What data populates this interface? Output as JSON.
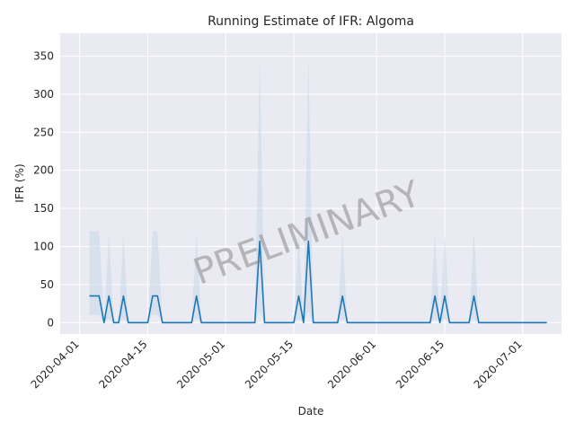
{
  "chart_data": {
    "type": "line",
    "title": "Running Estimate of IFR: Algoma",
    "xlabel": "Date",
    "ylabel": "IFR (%)",
    "watermark": "PRELIMINARY",
    "grid": true,
    "x_range": [
      "2020-03-28",
      "2020-07-09"
    ],
    "ylim": [
      -15,
      380
    ],
    "x_ticks": [
      "2020-04-01",
      "2020-04-15",
      "2020-05-01",
      "2020-05-15",
      "2020-06-01",
      "2020-06-15",
      "2020-07-01"
    ],
    "y_ticks": [
      0,
      50,
      100,
      150,
      200,
      250,
      300,
      350
    ],
    "line_color": "#1f77b4",
    "band_color": "#c6d7ea",
    "series": [
      {
        "values": [
          [
            "2020-04-03",
            35
          ],
          [
            "2020-04-04",
            35
          ],
          [
            "2020-04-05",
            35
          ],
          [
            "2020-04-06",
            0
          ],
          [
            "2020-04-07",
            35
          ],
          [
            "2020-04-08",
            0
          ],
          [
            "2020-04-09",
            0
          ],
          [
            "2020-04-10",
            35
          ],
          [
            "2020-04-11",
            0
          ],
          [
            "2020-04-15",
            0
          ],
          [
            "2020-04-16",
            35
          ],
          [
            "2020-04-17",
            35
          ],
          [
            "2020-04-18",
            0
          ],
          [
            "2020-04-24",
            0
          ],
          [
            "2020-04-25",
            35
          ],
          [
            "2020-04-26",
            0
          ],
          [
            "2020-05-07",
            0
          ],
          [
            "2020-05-08",
            107
          ],
          [
            "2020-05-09",
            0
          ],
          [
            "2020-05-15",
            0
          ],
          [
            "2020-05-16",
            35
          ],
          [
            "2020-05-17",
            0
          ],
          [
            "2020-05-18",
            107
          ],
          [
            "2020-05-19",
            0
          ],
          [
            "2020-05-24",
            0
          ],
          [
            "2020-05-25",
            35
          ],
          [
            "2020-05-26",
            0
          ],
          [
            "2020-06-12",
            0
          ],
          [
            "2020-06-13",
            35
          ],
          [
            "2020-06-14",
            0
          ],
          [
            "2020-06-15",
            35
          ],
          [
            "2020-06-16",
            0
          ],
          [
            "2020-06-20",
            0
          ],
          [
            "2020-06-21",
            35
          ],
          [
            "2020-06-22",
            0
          ],
          [
            "2020-07-06",
            0
          ]
        ]
      }
    ],
    "band_upper": [
      [
        "2020-04-03",
        120
      ],
      [
        "2020-04-04",
        120
      ],
      [
        "2020-04-05",
        120
      ],
      [
        "2020-04-06",
        0
      ],
      [
        "2020-04-07",
        117
      ],
      [
        "2020-04-08",
        0
      ],
      [
        "2020-04-09",
        0
      ],
      [
        "2020-04-10",
        117
      ],
      [
        "2020-04-11",
        0
      ],
      [
        "2020-04-15",
        0
      ],
      [
        "2020-04-16",
        120
      ],
      [
        "2020-04-17",
        120
      ],
      [
        "2020-04-18",
        0
      ],
      [
        "2020-04-24",
        0
      ],
      [
        "2020-04-25",
        117
      ],
      [
        "2020-04-26",
        0
      ],
      [
        "2020-05-07",
        0
      ],
      [
        "2020-05-08",
        348
      ],
      [
        "2020-05-09",
        0
      ],
      [
        "2020-05-15",
        0
      ],
      [
        "2020-05-16",
        117
      ],
      [
        "2020-05-17",
        0
      ],
      [
        "2020-05-18",
        348
      ],
      [
        "2020-05-19",
        0
      ],
      [
        "2020-05-24",
        0
      ],
      [
        "2020-05-25",
        117
      ],
      [
        "2020-05-26",
        0
      ],
      [
        "2020-06-12",
        0
      ],
      [
        "2020-06-13",
        117
      ],
      [
        "2020-06-14",
        0
      ],
      [
        "2020-06-15",
        117
      ],
      [
        "2020-06-16",
        0
      ],
      [
        "2020-06-20",
        0
      ],
      [
        "2020-06-21",
        117
      ],
      [
        "2020-06-22",
        0
      ],
      [
        "2020-07-06",
        0
      ]
    ],
    "band_lower": [
      [
        "2020-04-03",
        10
      ],
      [
        "2020-04-04",
        10
      ],
      [
        "2020-04-05",
        10
      ],
      [
        "2020-04-06",
        0
      ],
      [
        "2020-04-07",
        5
      ],
      [
        "2020-04-08",
        0
      ],
      [
        "2020-04-09",
        0
      ],
      [
        "2020-04-10",
        5
      ],
      [
        "2020-04-11",
        0
      ],
      [
        "2020-04-15",
        0
      ],
      [
        "2020-04-16",
        10
      ],
      [
        "2020-04-17",
        10
      ],
      [
        "2020-04-18",
        0
      ],
      [
        "2020-04-24",
        0
      ],
      [
        "2020-04-25",
        5
      ],
      [
        "2020-04-26",
        0
      ],
      [
        "2020-05-07",
        0
      ],
      [
        "2020-05-08",
        15
      ],
      [
        "2020-05-09",
        0
      ],
      [
        "2020-05-15",
        0
      ],
      [
        "2020-05-16",
        5
      ],
      [
        "2020-05-17",
        0
      ],
      [
        "2020-05-18",
        15
      ],
      [
        "2020-05-19",
        0
      ],
      [
        "2020-05-24",
        0
      ],
      [
        "2020-05-25",
        5
      ],
      [
        "2020-05-26",
        0
      ],
      [
        "2020-06-12",
        0
      ],
      [
        "2020-06-13",
        5
      ],
      [
        "2020-06-14",
        0
      ],
      [
        "2020-06-15",
        5
      ],
      [
        "2020-06-16",
        0
      ],
      [
        "2020-06-20",
        0
      ],
      [
        "2020-06-21",
        5
      ],
      [
        "2020-06-22",
        0
      ],
      [
        "2020-07-06",
        0
      ]
    ]
  }
}
